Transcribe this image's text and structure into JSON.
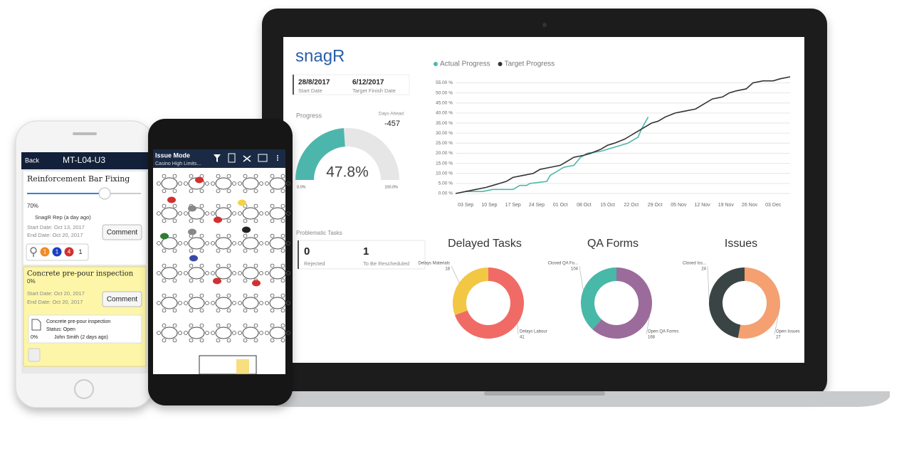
{
  "iphone": {
    "back": "Back",
    "title": "MT-L04-U3",
    "task1": {
      "name": "Reinforcement Bar Fixing",
      "progress": "70%",
      "activity": "SnagR Rep (a day ago)",
      "start": "Start Date: Oct 13, 2017",
      "end": "End Date: Oct 20, 2017",
      "button": "Comment",
      "badges": [
        "1",
        "1",
        "4",
        "1"
      ]
    },
    "task2": {
      "name": "Concrete pre-pour inspection",
      "progress": "0%",
      "start": "Start Date: Oct 20, 2017",
      "end": "End Date: Oct 20, 2017",
      "button": "Comment",
      "form": {
        "name": "Concrete pre-pour inspection",
        "status": "Status: Open",
        "author": "John Smith (2 days ago)",
        "progress": "0%"
      }
    }
  },
  "android": {
    "mode": "Issue Mode",
    "location": "Casino High Limits..."
  },
  "dashboard": {
    "logo": "snagR",
    "start_date": "28/8/2017",
    "start_label": "Start Date",
    "target_date": "6/12/2017",
    "target_label": "Target Finish Date",
    "days_ahead_label": "Days Ahead",
    "days_ahead": -457,
    "problematic_title": "Problematic Tasks",
    "rejected": 0,
    "rejected_label": "Rejected",
    "rescheduled": 1,
    "rescheduled_label": "To Be Rescheduled"
  },
  "chart_data": [
    {
      "type": "line",
      "series": [
        {
          "name": "Actual Progress",
          "color": "#4db6ac",
          "x": [
            0,
            5,
            8,
            14,
            16,
            18,
            19,
            24,
            25,
            29,
            32,
            34,
            36,
            40,
            44,
            48,
            51,
            52,
            53,
            54
          ],
          "values": [
            1,
            1,
            2,
            2,
            4,
            4,
            5,
            6,
            9,
            13,
            14,
            18,
            20,
            21,
            23,
            25,
            28,
            32,
            35,
            38
          ]
        },
        {
          "name": "Target Progress",
          "color": "#333333",
          "x": [
            -3,
            0,
            3,
            6,
            8,
            10,
            12,
            14,
            17,
            20,
            22,
            25,
            28,
            30,
            32,
            35,
            37,
            40,
            42,
            44,
            47,
            49,
            51,
            53,
            55,
            57,
            59,
            62,
            65,
            68,
            70,
            73,
            76,
            78,
            80,
            83,
            85,
            88,
            91,
            93,
            96
          ],
          "values": [
            0,
            1,
            2,
            3,
            4,
            5,
            6,
            8,
            9,
            10,
            12,
            13,
            14,
            16,
            18,
            19,
            20,
            22,
            24,
            25,
            27,
            29,
            31,
            33,
            35,
            36,
            38,
            40,
            41,
            42,
            44,
            47,
            48,
            50,
            51,
            52,
            55,
            56,
            56,
            57,
            58
          ]
        }
      ],
      "xlim": [
        -3,
        96
      ],
      "xticks": [
        {
          "value": 0,
          "label": "03 Sep"
        },
        {
          "value": 7,
          "label": "10 Sep"
        },
        {
          "value": 14,
          "label": "17 Sep"
        },
        {
          "value": 21,
          "label": "24 Sep"
        },
        {
          "value": 28,
          "label": "01 Oct"
        },
        {
          "value": 35,
          "label": "08 Oct"
        },
        {
          "value": 42,
          "label": "15 Oct"
        },
        {
          "value": 49,
          "label": "22 Oct"
        },
        {
          "value": 56,
          "label": "29 Oct"
        },
        {
          "value": 63,
          "label": "05 Nov"
        },
        {
          "value": 70,
          "label": "12 Nov"
        },
        {
          "value": 77,
          "label": "19 Nov"
        },
        {
          "value": 84,
          "label": "26 Nov"
        },
        {
          "value": 91,
          "label": "03 Dec"
        }
      ],
      "ylim": [
        0,
        58
      ],
      "yticks": [
        {
          "value": 0,
          "label": "0.00 %"
        },
        {
          "value": 5,
          "label": "5.00 %"
        },
        {
          "value": 10,
          "label": "10.00 %"
        },
        {
          "value": 15,
          "label": "15.00 %"
        },
        {
          "value": 20,
          "label": "20.00 %"
        },
        {
          "value": 25,
          "label": "25.00 %"
        },
        {
          "value": 30,
          "label": "30.00 %"
        },
        {
          "value": 35,
          "label": "35.00 %"
        },
        {
          "value": 40,
          "label": "40.00 %"
        },
        {
          "value": 45,
          "label": "45.00 %"
        },
        {
          "value": 50,
          "label": "50.00 %"
        },
        {
          "value": 55,
          "label": "55.00 %"
        }
      ],
      "grid": true
    },
    {
      "type": "gauge",
      "title": "Progress",
      "values": [
        47.8
      ],
      "value_labels": [
        "47.8%"
      ],
      "color": "#4db6ac",
      "ylim": [
        0,
        100
      ],
      "yticks": [
        {
          "value": 0,
          "label": "0.0%"
        },
        {
          "value": 100,
          "label": "100.0%"
        }
      ]
    },
    {
      "type": "pie",
      "title": "Delayed Tasks",
      "categories": [
        "Delays Materials",
        "Delays Labour"
      ],
      "values": [
        18,
        41
      ],
      "colors": [
        "#f2c744",
        "#f06b66"
      ]
    },
    {
      "type": "pie",
      "title": "QA Forms",
      "categories": [
        "Closed QA Fo...",
        "Open QA Forms"
      ],
      "values": [
        104,
        168
      ],
      "colors": [
        "#48b8a8",
        "#9b6b9b"
      ]
    },
    {
      "type": "pie",
      "title": "Issues",
      "categories": [
        "Closed Iss...",
        "Open Issues"
      ],
      "values": [
        24,
        27
      ],
      "colors": [
        "#3a4444",
        "#f4a070"
      ]
    }
  ]
}
